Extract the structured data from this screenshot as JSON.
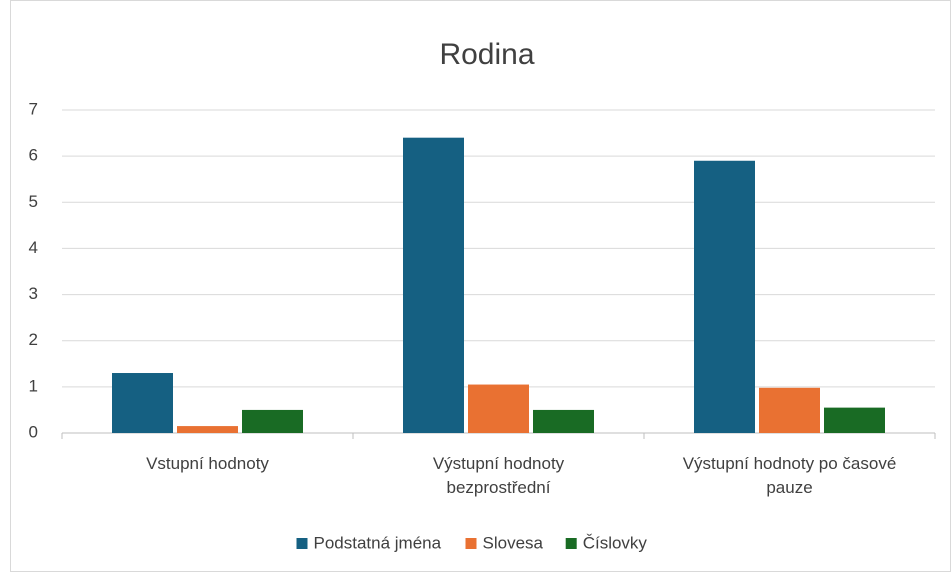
{
  "chart_data": {
    "type": "bar",
    "title": "Rodina",
    "categories": [
      "Vstupní hodnoty",
      "Výstupní hodnoty bezprostřední",
      "Výstupní hodnoty po časové pauze"
    ],
    "series": [
      {
        "name": "Podstatná jména",
        "color": "#156082",
        "values": [
          1.3,
          6.4,
          5.9
        ]
      },
      {
        "name": "Slovesa",
        "color": "#e97132",
        "values": [
          0.15,
          1.05,
          0.98
        ]
      },
      {
        "name": "Číslovky",
        "color": "#196b24",
        "values": [
          0.5,
          0.5,
          0.55
        ]
      }
    ],
    "ylim": [
      0,
      7
    ],
    "yticks": [
      0,
      1,
      2,
      3,
      4,
      5,
      6,
      7
    ],
    "grid": true,
    "legend": "bottom"
  }
}
